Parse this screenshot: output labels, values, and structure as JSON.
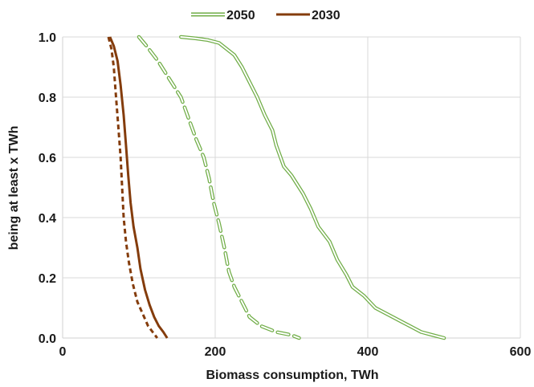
{
  "chart_data": {
    "type": "line",
    "title": "",
    "xlabel": "Biomass consumption, TWh",
    "ylabel": "being at least x TWh",
    "xlim": [
      0,
      600
    ],
    "ylim": [
      0,
      1.0
    ],
    "x_ticks": [
      0,
      200,
      400,
      600
    ],
    "x_tick_labels": [
      "0",
      "200",
      "400",
      "600"
    ],
    "y_ticks": [
      0,
      0.2,
      0.4,
      0.6,
      0.8,
      1.0
    ],
    "y_tick_labels": [
      "0.0",
      "0.2",
      "0.4",
      "0.6",
      "0.8",
      "1.0"
    ],
    "grid": "both",
    "legend": {
      "position": "top-center",
      "entries": [
        {
          "label": "2050",
          "color": "#70ad47",
          "style": "double-line"
        },
        {
          "label": "2030",
          "color": "#843c0c",
          "style": "solid"
        }
      ]
    },
    "series": [
      {
        "color": "#70ad47",
        "style": "double-solid",
        "group": "2050",
        "points": [
          [
            155,
            1.0
          ],
          [
            175,
            0.995
          ],
          [
            190,
            0.99
          ],
          [
            205,
            0.98
          ],
          [
            215,
            0.96
          ],
          [
            225,
            0.94
          ],
          [
            235,
            0.9
          ],
          [
            245,
            0.85
          ],
          [
            255,
            0.8
          ],
          [
            265,
            0.74
          ],
          [
            275,
            0.69
          ],
          [
            280,
            0.64
          ],
          [
            290,
            0.57
          ],
          [
            300,
            0.54
          ],
          [
            315,
            0.48
          ],
          [
            325,
            0.43
          ],
          [
            335,
            0.37
          ],
          [
            350,
            0.32
          ],
          [
            360,
            0.26
          ],
          [
            372,
            0.21
          ],
          [
            380,
            0.17
          ],
          [
            395,
            0.14
          ],
          [
            410,
            0.1
          ],
          [
            425,
            0.08
          ],
          [
            440,
            0.06
          ],
          [
            455,
            0.04
          ],
          [
            470,
            0.02
          ],
          [
            485,
            0.01
          ],
          [
            500,
            0.0
          ]
        ]
      },
      {
        "color": "#70ad47",
        "style": "double-dashed",
        "group": "2050",
        "points": [
          [
            100,
            1.0
          ],
          [
            110,
            0.97
          ],
          [
            125,
            0.92
          ],
          [
            140,
            0.86
          ],
          [
            155,
            0.8
          ],
          [
            165,
            0.73
          ],
          [
            175,
            0.66
          ],
          [
            185,
            0.6
          ],
          [
            192,
            0.53
          ],
          [
            198,
            0.45
          ],
          [
            205,
            0.38
          ],
          [
            212,
            0.3
          ],
          [
            218,
            0.22
          ],
          [
            225,
            0.17
          ],
          [
            235,
            0.12
          ],
          [
            245,
            0.07
          ],
          [
            260,
            0.04
          ],
          [
            280,
            0.02
          ],
          [
            300,
            0.01
          ],
          [
            310,
            0.0
          ]
        ]
      },
      {
        "color": "#843c0c",
        "style": "solid",
        "group": "2030",
        "points": [
          [
            62,
            1.0
          ],
          [
            67,
            0.97
          ],
          [
            72,
            0.92
          ],
          [
            76,
            0.84
          ],
          [
            80,
            0.74
          ],
          [
            83,
            0.64
          ],
          [
            86,
            0.54
          ],
          [
            89,
            0.45
          ],
          [
            93,
            0.37
          ],
          [
            98,
            0.3
          ],
          [
            102,
            0.23
          ],
          [
            108,
            0.16
          ],
          [
            114,
            0.11
          ],
          [
            120,
            0.07
          ],
          [
            126,
            0.04
          ],
          [
            132,
            0.02
          ],
          [
            137,
            0.0
          ]
        ]
      },
      {
        "color": "#843c0c",
        "style": "dashed",
        "group": "2030",
        "points": [
          [
            60,
            1.0
          ],
          [
            64,
            0.96
          ],
          [
            67,
            0.9
          ],
          [
            70,
            0.8
          ],
          [
            73,
            0.7
          ],
          [
            76,
            0.6
          ],
          [
            78,
            0.5
          ],
          [
            80,
            0.4
          ],
          [
            83,
            0.32
          ],
          [
            87,
            0.25
          ],
          [
            92,
            0.18
          ],
          [
            98,
            0.12
          ],
          [
            105,
            0.08
          ],
          [
            112,
            0.04
          ],
          [
            118,
            0.02
          ],
          [
            124,
            0.0
          ]
        ]
      }
    ]
  }
}
